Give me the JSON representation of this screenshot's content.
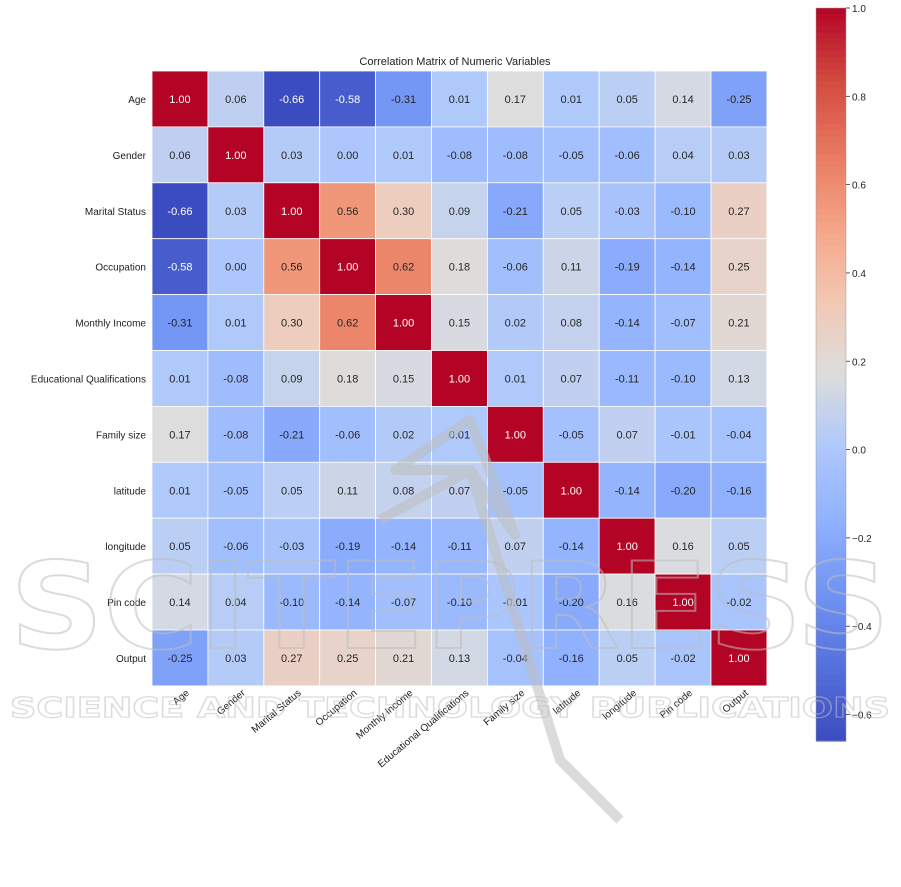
{
  "chart_data": {
    "type": "heatmap",
    "title": "Correlation Matrix of Numeric Variables",
    "variables": [
      "Age",
      "Gender",
      "Marital Status",
      "Occupation",
      "Monthly Income",
      "Educational Qualifications",
      "Family size",
      "latitude",
      "longitude",
      "Pin code",
      "Output"
    ],
    "matrix": [
      [
        1.0,
        0.06,
        -0.66,
        -0.58,
        -0.31,
        0.01,
        0.17,
        0.01,
        0.05,
        0.14,
        -0.25
      ],
      [
        0.06,
        1.0,
        0.03,
        -0.0,
        0.01,
        -0.08,
        -0.08,
        -0.05,
        -0.06,
        0.04,
        0.03
      ],
      [
        -0.66,
        0.03,
        1.0,
        0.56,
        0.3,
        0.09,
        -0.21,
        0.05,
        -0.03,
        -0.1,
        0.27
      ],
      [
        -0.58,
        -0.0,
        0.56,
        1.0,
        0.62,
        0.18,
        -0.06,
        0.11,
        -0.19,
        -0.14,
        0.25
      ],
      [
        -0.31,
        0.01,
        0.3,
        0.62,
        1.0,
        0.15,
        0.02,
        0.08,
        -0.14,
        -0.07,
        0.21
      ],
      [
        0.01,
        -0.08,
        0.09,
        0.18,
        0.15,
        1.0,
        0.01,
        0.07,
        -0.11,
        -0.1,
        0.13
      ],
      [
        0.17,
        -0.08,
        -0.21,
        -0.06,
        0.02,
        0.01,
        1.0,
        -0.05,
        0.07,
        -0.01,
        -0.04
      ],
      [
        0.01,
        -0.05,
        0.05,
        0.11,
        0.08,
        0.07,
        -0.05,
        1.0,
        -0.14,
        -0.2,
        -0.16
      ],
      [
        0.05,
        -0.06,
        -0.03,
        -0.19,
        -0.14,
        -0.11,
        0.07,
        -0.14,
        1.0,
        0.16,
        0.05
      ],
      [
        0.14,
        0.04,
        -0.1,
        -0.14,
        -0.07,
        -0.1,
        -0.01,
        -0.2,
        0.16,
        1.0,
        -0.02
      ],
      [
        -0.25,
        0.03,
        0.27,
        0.25,
        0.21,
        0.13,
        -0.04,
        -0.16,
        0.05,
        -0.02,
        1.0
      ]
    ],
    "colorbar": {
      "colormap": "coolwarm",
      "range": [
        -0.66,
        1.0
      ],
      "ticks": [
        -0.6,
        -0.4,
        -0.2,
        0.0,
        0.2,
        0.4,
        0.6,
        0.8,
        1.0
      ],
      "tick_labels": [
        "−0.6",
        "−0.4",
        "−0.2",
        "0.0",
        "0.2",
        "0.4",
        "0.6",
        "0.8",
        "1.0"
      ]
    },
    "xlabel": "",
    "ylabel": ""
  },
  "watermark": {
    "line1": "SCITEPRESS",
    "line2": "SCIENCE AND TECHNOLOGY PUBLICATIONS"
  }
}
